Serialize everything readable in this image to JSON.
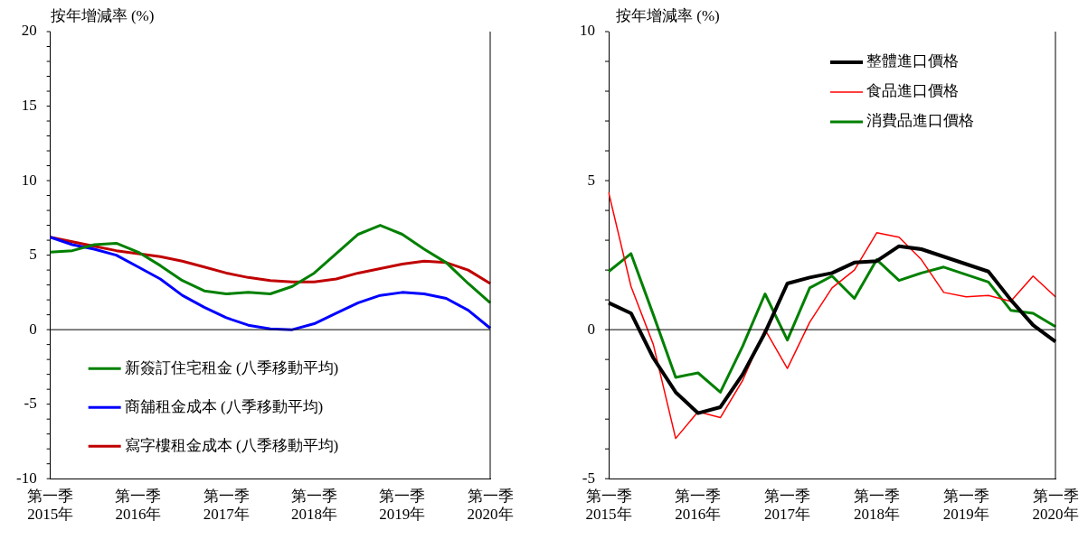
{
  "chart_data": [
    {
      "type": "line",
      "ylabel": "按年增減率 (%)",
      "categories": [
        "第一季 2015年",
        null,
        null,
        null,
        "第一季 2016年",
        null,
        null,
        null,
        "第一季 2017年",
        null,
        null,
        null,
        "第一季 2018年",
        null,
        null,
        null,
        "第一季 2019年",
        null,
        null,
        null,
        "第一季 2020年"
      ],
      "series": [
        {
          "name": "新簽訂住宅租金 (八季移動平均)",
          "color": "#008000",
          "values": [
            5.2,
            5.3,
            5.7,
            5.8,
            5.2,
            4.3,
            3.3,
            2.6,
            2.4,
            2.5,
            2.4,
            2.9,
            3.8,
            5.1,
            6.4,
            7.0,
            6.4,
            5.4,
            4.5,
            3.1,
            1.8
          ]
        },
        {
          "name": "商舖租金成本 (八季移動平均)",
          "color": "#0000ff",
          "values": [
            6.2,
            5.7,
            5.4,
            5.0,
            4.2,
            3.4,
            2.3,
            1.5,
            0.8,
            0.3,
            0.05,
            0.0,
            0.4,
            1.1,
            1.8,
            2.3,
            2.5,
            2.4,
            2.1,
            1.3,
            0.1
          ]
        },
        {
          "name": "寫字樓租金成本 (八季移動平均)",
          "color": "#c00000",
          "values": [
            6.2,
            5.9,
            5.6,
            5.3,
            5.1,
            4.9,
            4.6,
            4.2,
            3.8,
            3.5,
            3.3,
            3.2,
            3.2,
            3.4,
            3.8,
            4.1,
            4.4,
            4.6,
            4.5,
            4.0,
            3.1
          ]
        }
      ],
      "ylim": [
        -10,
        20
      ],
      "yticks": [
        -10,
        -5,
        0,
        5,
        10,
        15,
        20
      ],
      "ref_lines": [
        {
          "axis": "y",
          "value": 0
        }
      ],
      "legend": "bottom left",
      "grid": false,
      "marker": "none",
      "line_style": "solid"
    },
    {
      "type": "line",
      "ylabel": "按年增減率 (%)",
      "categories": [
        "第一季 2015年",
        null,
        null,
        null,
        "第一季 2016年",
        null,
        null,
        null,
        "第一季 2017年",
        null,
        null,
        null,
        "第一季 2018年",
        null,
        null,
        null,
        "第一季 2019年",
        null,
        null,
        null,
        "第一季 2020年"
      ],
      "series": [
        {
          "name": "整體進口價格",
          "color": "#000000",
          "values": [
            0.9,
            0.55,
            -0.95,
            -2.1,
            -2.8,
            -2.6,
            -1.5,
            -0.1,
            1.55,
            1.75,
            1.9,
            2.25,
            2.3,
            2.8,
            2.7,
            2.45,
            2.2,
            1.95,
            1.0,
            0.15,
            -0.4
          ]
        },
        {
          "name": "食品進口價格",
          "color": "#ff0000",
          "values": [
            4.6,
            1.45,
            -0.5,
            -3.65,
            -2.75,
            -2.95,
            -1.7,
            0.0,
            -1.3,
            0.25,
            1.4,
            2.0,
            3.25,
            3.1,
            2.35,
            1.25,
            1.1,
            1.15,
            0.95,
            1.8,
            1.1
          ]
        },
        {
          "name": "消費品進口價格",
          "color": "#008000",
          "values": [
            1.95,
            2.55,
            0.5,
            -1.6,
            -1.45,
            -2.1,
            -0.55,
            1.2,
            -0.35,
            1.4,
            1.8,
            1.05,
            2.35,
            1.65,
            1.9,
            2.1,
            1.85,
            1.6,
            0.65,
            0.55,
            0.1
          ]
        }
      ],
      "ylim": [
        -5,
        10
      ],
      "yticks": [
        -5,
        0,
        5,
        10
      ],
      "ref_lines": [
        {
          "axis": "y",
          "value": 0
        }
      ],
      "legend": "top",
      "grid": false,
      "marker": "none",
      "line_style": "solid"
    }
  ]
}
